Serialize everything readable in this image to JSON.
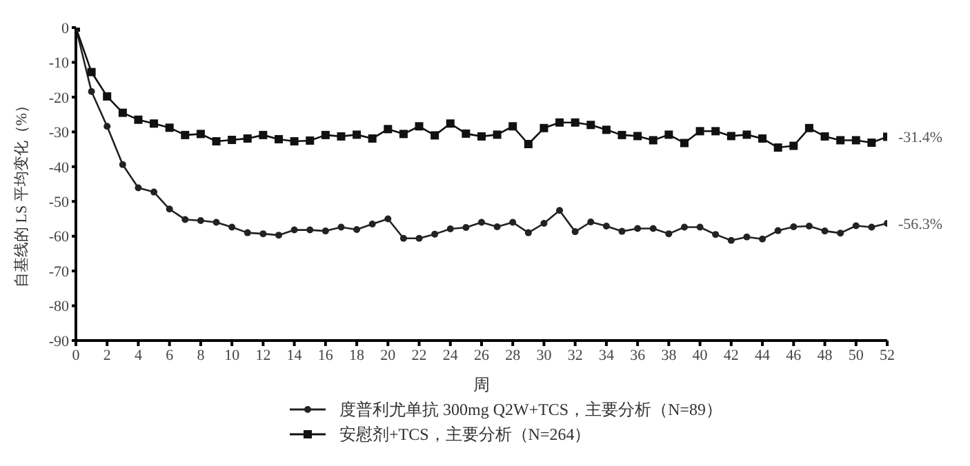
{
  "chart_data": {
    "type": "line",
    "xlabel": "周",
    "ylabel": "自基线的 LS 平均变化（%）",
    "x": [
      0,
      1,
      2,
      3,
      4,
      5,
      6,
      7,
      8,
      9,
      10,
      11,
      12,
      13,
      14,
      15,
      16,
      17,
      18,
      19,
      20,
      21,
      22,
      23,
      24,
      25,
      26,
      27,
      28,
      29,
      30,
      31,
      32,
      33,
      34,
      35,
      36,
      37,
      38,
      39,
      40,
      41,
      42,
      43,
      44,
      45,
      46,
      47,
      48,
      49,
      50,
      51,
      52
    ],
    "series": [
      {
        "name": "度普利尤单抗 300mg Q2W+TCS，主要分析（N=89）",
        "color": "#222222",
        "marker": "circle",
        "values": [
          0,
          -18.4,
          -28.4,
          -39.4,
          -46.1,
          -47.3,
          -52.2,
          -55.2,
          -55.5,
          -56,
          -57.4,
          -59,
          -59.3,
          -59.7,
          -58.2,
          -58.2,
          -58.5,
          -57.4,
          -58.1,
          -56.5,
          -55,
          -60.6,
          -60.6,
          -59.4,
          -57.9,
          -57.5,
          -56,
          -57.3,
          -56,
          -59,
          -56.3,
          -52.6,
          -58.7,
          -55.9,
          -57.1,
          -58.6,
          -57.8,
          -57.8,
          -59.3,
          -57.4,
          -57.4,
          -59.5,
          -61.2,
          -60.2,
          -60.8,
          -58.4,
          -57.3,
          -57.1,
          -58.5,
          -59.1,
          -57,
          -57.4,
          -56.3
        ]
      },
      {
        "name": "安慰剂+TCS，主要分析（N=264）",
        "color": "#111111",
        "marker": "square",
        "values": [
          0,
          -12.8,
          -19.8,
          -24.5,
          -26.5,
          -27.6,
          -28.8,
          -30.9,
          -30.6,
          -32.7,
          -32.3,
          -31.9,
          -30.9,
          -32.1,
          -32.7,
          -32.5,
          -30.9,
          -31.3,
          -30.8,
          -31.9,
          -29.2,
          -30.6,
          -28.4,
          -31,
          -27.6,
          -30.5,
          -31.3,
          -30.8,
          -28.4,
          -33.5,
          -28.9,
          -27.3,
          -27.3,
          -28,
          -29.4,
          -30.9,
          -31.2,
          -32.4,
          -30.8,
          -33.2,
          -29.8,
          -29.8,
          -31.2,
          -30.8,
          -31.9,
          -34.5,
          -34,
          -28.9,
          -31.3,
          -32.4,
          -32.4,
          -33.1,
          -31.4
        ]
      }
    ],
    "annotations": [
      {
        "text": "-31.4%",
        "x": 52,
        "y": -31.4
      },
      {
        "text": "-56.3%",
        "x": 52,
        "y": -56.3
      }
    ],
    "xlim": [
      0,
      52
    ],
    "xticks": [
      0,
      2,
      4,
      6,
      8,
      10,
      12,
      14,
      16,
      18,
      20,
      22,
      24,
      26,
      28,
      30,
      32,
      34,
      36,
      38,
      40,
      42,
      44,
      46,
      48,
      50,
      52
    ],
    "ylim": [
      -90,
      0
    ],
    "yticks": [
      0,
      -10,
      -20,
      -30,
      -40,
      -50,
      -60,
      -70,
      -80,
      -90
    ],
    "grid": false,
    "legend": "bottom",
    "line_style": "solid"
  }
}
